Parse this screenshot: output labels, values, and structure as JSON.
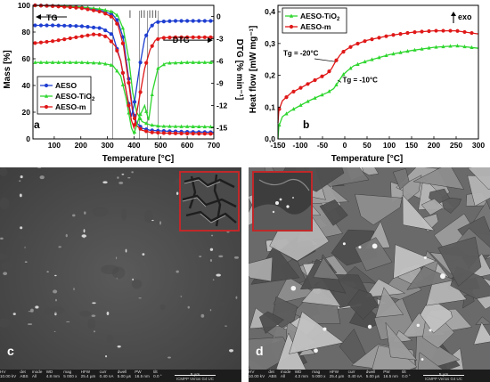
{
  "chart_data": [
    {
      "type": "line",
      "panel": "a",
      "xlabel": "Temperature [°C]",
      "ylabel_left": "Mass [%]",
      "ylabel_right": "DTG [% min⁻¹]",
      "xlim": [
        20,
        700
      ],
      "ylim_left": [
        0,
        100
      ],
      "ylim_right": [
        -16.5,
        1.5
      ],
      "xticks": [
        100,
        200,
        300,
        400,
        500,
        600,
        700
      ],
      "yticks_left": [
        0,
        20,
        40,
        60,
        80,
        100
      ],
      "yticks_right": [
        0,
        -3,
        -6,
        -9,
        -12,
        -15
      ],
      "grid": false,
      "legend_position": "bottom-left",
      "stage_lines": [
        320,
        420,
        450,
        490
      ],
      "stage_labels": [
        {
          "text": "I",
          "x": 385
        },
        {
          "text": "II",
          "x": 433
        },
        {
          "text": "III",
          "x": 470
        }
      ],
      "annotations": [
        {
          "text": "TG",
          "arrow": "left"
        },
        {
          "text": "DTG",
          "arrow": "right"
        }
      ],
      "series": [
        {
          "name": "AESO",
          "kind": "TG",
          "color": "#1f3fd1",
          "marker": "circle",
          "x": [
            25,
            100,
            200,
            280,
            320,
            340,
            360,
            380,
            395,
            410,
            430,
            460,
            500,
            550,
            600,
            650,
            700
          ],
          "y": [
            100,
            99.5,
            98.5,
            96,
            93,
            88,
            75,
            45,
            22,
            12,
            8,
            6.5,
            6,
            5.6,
            5.3,
            5.1,
            5
          ]
        },
        {
          "name": "AESO-TiO2",
          "kind": "TG",
          "color": "#2fd62f",
          "marker": "triangle",
          "x": [
            25,
            100,
            200,
            280,
            320,
            340,
            360,
            380,
            395,
            410,
            430,
            460,
            500,
            550,
            600,
            650,
            700
          ],
          "y": [
            100,
            99.6,
            98.8,
            97,
            95,
            92,
            82,
            60,
            35,
            20,
            13,
            10.5,
            9.5,
            9.3,
            9.2,
            9.1,
            9
          ]
        },
        {
          "name": "AESO-m",
          "kind": "TG",
          "color": "#e01818",
          "marker": "circle",
          "x": [
            25,
            100,
            200,
            280,
            320,
            340,
            360,
            380,
            395,
            410,
            430,
            460,
            500,
            550,
            600,
            650,
            700
          ],
          "y": [
            100,
            99.4,
            98,
            95,
            91,
            85,
            70,
            42,
            20,
            10,
            6.5,
            5,
            4.5,
            4.2,
            4,
            3.9,
            3.8
          ]
        },
        {
          "name": "AESO",
          "kind": "DTG",
          "color": "#1f3fd1",
          "marker": "circle",
          "x": [
            25,
            100,
            200,
            280,
            320,
            350,
            370,
            390,
            400,
            420,
            440,
            460,
            480,
            500,
            550,
            600,
            650,
            700
          ],
          "y": [
            -1.2,
            -1.2,
            -1.3,
            -1.6,
            -2.5,
            -6,
            -10,
            -13.5,
            -12,
            -7,
            -3,
            -1.5,
            -0.8,
            -0.7,
            -0.6,
            -0.6,
            -0.6,
            -0.6
          ]
        },
        {
          "name": "AESO-TiO2",
          "kind": "DTG",
          "color": "#2fd62f",
          "marker": "triangle",
          "x": [
            25,
            100,
            200,
            280,
            320,
            350,
            370,
            390,
            400,
            420,
            440,
            455,
            470,
            490,
            520,
            600,
            650,
            700
          ],
          "y": [
            -6.2,
            -6.2,
            -6.2,
            -6.3,
            -6.6,
            -8,
            -11,
            -15,
            -15.8,
            -13.5,
            -12,
            -14,
            -10,
            -7,
            -6.3,
            -6.2,
            -6.2,
            -6.2
          ]
        },
        {
          "name": "AESO-m",
          "kind": "DTG",
          "color": "#e01818",
          "marker": "circle",
          "x": [
            25,
            100,
            200,
            250,
            280,
            300,
            330,
            350,
            370,
            390,
            400,
            420,
            440,
            460,
            480,
            500,
            550,
            600,
            650,
            700
          ],
          "y": [
            -3.6,
            -3.3,
            -2.7,
            -2.4,
            -2.5,
            -2.8,
            -4,
            -6,
            -10,
            -14,
            -15,
            -11,
            -7,
            -4.5,
            -3.2,
            -2.9,
            -2.8,
            -2.8,
            -2.8,
            -2.8
          ]
        }
      ]
    },
    {
      "type": "line",
      "panel": "b",
      "xlabel": "Temperature [°C]",
      "ylabel": "Heat flow [mW mg⁻¹]",
      "xlim": [
        -150,
        300
      ],
      "ylim": [
        0.0,
        0.42
      ],
      "xticks": [
        -150,
        -100,
        -50,
        0,
        50,
        100,
        150,
        200,
        250,
        300
      ],
      "yticks": [
        0.0,
        0.1,
        0.2,
        0.3,
        0.4
      ],
      "ytick_labels": [
        "0,0",
        "0,1",
        "0,2",
        "0,3",
        "0,4"
      ],
      "grid": false,
      "legend_position": "top-left",
      "exo_label": "exo",
      "annotations": [
        {
          "text": "Tg = -20°C",
          "x": -20,
          "y": 0.255
        },
        {
          "text": "Tg = -10°C",
          "x": -10,
          "y": 0.175
        }
      ],
      "series": [
        {
          "name": "AESO-TiO2",
          "color": "#2fd62f",
          "marker": "triangle",
          "x": [
            -150,
            -148,
            -140,
            -120,
            -100,
            -80,
            -60,
            -40,
            -25,
            -15,
            -5,
            5,
            20,
            50,
            100,
            150,
            200,
            250,
            300
          ],
          "y": [
            0.0,
            0.04,
            0.07,
            0.09,
            0.105,
            0.12,
            0.133,
            0.145,
            0.158,
            0.178,
            0.2,
            0.213,
            0.23,
            0.245,
            0.265,
            0.278,
            0.288,
            0.293,
            0.285
          ]
        },
        {
          "name": "AESO-m",
          "color": "#e01818",
          "marker": "circle",
          "x": [
            -150,
            -148,
            -140,
            -120,
            -100,
            -80,
            -60,
            -40,
            -30,
            -20,
            -10,
            0,
            20,
            50,
            100,
            150,
            200,
            250,
            300
          ],
          "y": [
            0.05,
            0.09,
            0.12,
            0.145,
            0.16,
            0.175,
            0.19,
            0.205,
            0.22,
            0.245,
            0.265,
            0.278,
            0.295,
            0.31,
            0.325,
            0.335,
            0.34,
            0.34,
            0.33
          ]
        }
      ]
    }
  ],
  "sem_c": {
    "label": "c",
    "info_fields": [
      {
        "k": "HV",
        "v": "10.00 kV"
      },
      {
        "k": "det",
        "v": "ABS"
      },
      {
        "k": "mode",
        "v": "All"
      },
      {
        "k": "WD",
        "v": "4.8 mm"
      },
      {
        "k": "mag",
        "v": "5 000 x"
      },
      {
        "k": "HFW",
        "v": "25.4 µm"
      },
      {
        "k": "curr",
        "v": "0.40 nA"
      },
      {
        "k": "dwell",
        "v": "5.00 µs"
      },
      {
        "k": "PW",
        "v": "16.5 nm"
      },
      {
        "k": "tilt",
        "v": "0.0 °"
      }
    ],
    "scale": "5 µm",
    "lab": "ICMPP Verios G4 UC"
  },
  "sem_d": {
    "label": "d",
    "info_fields": [
      {
        "k": "HV",
        "v": "10.00 kV"
      },
      {
        "k": "det",
        "v": "ABS"
      },
      {
        "k": "mode",
        "v": "All"
      },
      {
        "k": "WD",
        "v": "4.3 mm"
      },
      {
        "k": "mag",
        "v": "5 000 x"
      },
      {
        "k": "HFW",
        "v": "25.4 µm"
      },
      {
        "k": "curr",
        "v": "0.40 nA"
      },
      {
        "k": "dwell",
        "v": "5.00 µs"
      },
      {
        "k": "PW",
        "v": "16.5 nm"
      },
      {
        "k": "tilt",
        "v": "0.0 °"
      }
    ],
    "scale": "5 µm",
    "lab": "ICMPP Verios G4 UC"
  }
}
